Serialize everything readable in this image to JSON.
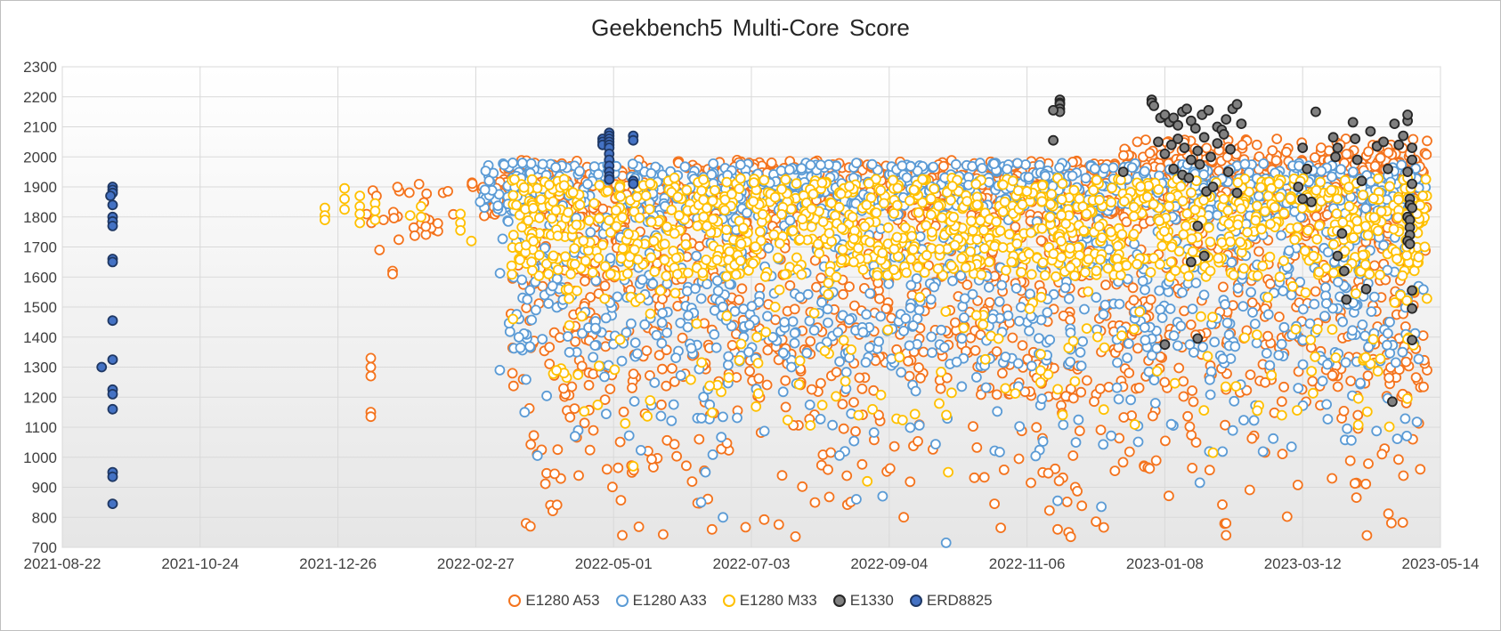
{
  "chart_data": {
    "type": "scatter",
    "title": "Geekbench5 Multi-Core Score",
    "xlabel": "",
    "ylabel": "",
    "x_ticks": [
      "2021-08-22",
      "2021-10-24",
      "2021-12-26",
      "2022-02-27",
      "2022-05-01",
      "2022-07-03",
      "2022-09-04",
      "2022-11-06",
      "2023-01-08",
      "2023-03-12",
      "2023-05-14"
    ],
    "xlim": [
      "2021-08-22",
      "2023-05-14"
    ],
    "y_ticks": [
      700,
      800,
      900,
      1000,
      1100,
      1200,
      1300,
      1400,
      1500,
      1600,
      1700,
      1800,
      1900,
      2000,
      2100,
      2200,
      2300
    ],
    "ylim": [
      700,
      2300
    ],
    "grid": true,
    "legend_position": "bottom",
    "series": [
      {
        "name": "E1280 A53",
        "fill": "#ffffff",
        "stroke": "#f4731d",
        "clusters": [
          {
            "x_range": [
              "2022-01-03",
              "2022-02-18"
            ],
            "y_range": [
              1720,
              1910
            ],
            "count": 30
          },
          {
            "x_range": [
              "2022-02-25",
              "2022-02-26"
            ],
            "y_range": [
              1900,
              1950
            ],
            "count": 4
          },
          {
            "x_range": [
              "2022-03-01",
              "2023-05-08"
            ],
            "y_range": [
              1800,
              1990
            ],
            "count": 900
          },
          {
            "x_range": [
              "2022-03-15",
              "2023-05-08"
            ],
            "y_range": [
              1200,
              1800
            ],
            "count": 900
          },
          {
            "x_range": [
              "2022-03-20",
              "2023-05-08"
            ],
            "y_range": [
              900,
              1200
            ],
            "count": 150
          },
          {
            "x_range": [
              "2022-04-01",
              "2023-05-08"
            ],
            "y_range": [
              730,
              900
            ],
            "count": 35
          },
          {
            "x_range": [
              "2022-12-20",
              "2023-05-08"
            ],
            "y_range": [
              1950,
              2060
            ],
            "count": 150
          }
        ],
        "points": [
          {
            "x": "2022-01-10",
            "y": 1330
          },
          {
            "x": "2022-01-10",
            "y": 1300
          },
          {
            "x": "2022-01-10",
            "y": 1270
          },
          {
            "x": "2022-01-10",
            "y": 1150
          },
          {
            "x": "2022-01-10",
            "y": 1135
          },
          {
            "x": "2022-01-14",
            "y": 1690
          },
          {
            "x": "2022-01-20",
            "y": 1620
          },
          {
            "x": "2022-01-20",
            "y": 1610
          },
          {
            "x": "2022-03-22",
            "y": 780
          },
          {
            "x": "2022-03-24",
            "y": 770
          },
          {
            "x": "2022-04-28",
            "y": 960
          },
          {
            "x": "2022-05-05",
            "y": 740
          },
          {
            "x": "2022-06-15",
            "y": 760
          },
          {
            "x": "2022-10-25",
            "y": 765
          },
          {
            "x": "2022-11-20",
            "y": 760
          },
          {
            "x": "2022-11-25",
            "y": 750
          },
          {
            "x": "2022-11-26",
            "y": 735
          },
          {
            "x": "2023-02-05",
            "y": 740
          },
          {
            "x": "2023-02-05",
            "y": 780
          },
          {
            "x": "2023-04-20",
            "y": 1450
          }
        ]
      },
      {
        "name": "E1280 A33",
        "fill": "#ffffff",
        "stroke": "#5b9bd5",
        "clusters": [
          {
            "x_range": [
              "2022-03-01",
              "2023-05-08"
            ],
            "y_range": [
              1820,
              1980
            ],
            "count": 700
          },
          {
            "x_range": [
              "2022-03-10",
              "2023-05-08"
            ],
            "y_range": [
              1300,
              1820
            ],
            "count": 700
          },
          {
            "x_range": [
              "2022-03-20",
              "2023-05-08"
            ],
            "y_range": [
              1000,
              1300
            ],
            "count": 110
          }
        ],
        "points": [
          {
            "x": "2022-03-01",
            "y": 1850
          },
          {
            "x": "2022-03-10",
            "y": 1290
          },
          {
            "x": "2022-06-10",
            "y": 850
          },
          {
            "x": "2022-06-12",
            "y": 950
          },
          {
            "x": "2022-06-20",
            "y": 800
          },
          {
            "x": "2022-08-20",
            "y": 860
          },
          {
            "x": "2022-09-01",
            "y": 870
          },
          {
            "x": "2022-09-30",
            "y": 715
          },
          {
            "x": "2022-11-20",
            "y": 855
          },
          {
            "x": "2022-12-10",
            "y": 835
          },
          {
            "x": "2023-01-24",
            "y": 915
          },
          {
            "x": "2023-03-10",
            "y": 1230
          }
        ]
      },
      {
        "name": "E1280 M33",
        "fill": "#ffffff",
        "stroke": "#ffc000",
        "clusters": [
          {
            "x_range": [
              "2022-03-15",
              "2023-05-08"
            ],
            "y_range": [
              1600,
              1930
            ],
            "count": 1000
          },
          {
            "x_range": [
              "2022-04-01",
              "2023-05-08"
            ],
            "y_range": [
              1100,
              1600
            ],
            "count": 150
          }
        ],
        "points": [
          {
            "x": "2021-12-20",
            "y": 1830
          },
          {
            "x": "2021-12-20",
            "y": 1805
          },
          {
            "x": "2021-12-20",
            "y": 1790
          },
          {
            "x": "2021-12-29",
            "y": 1895
          },
          {
            "x": "2021-12-29",
            "y": 1860
          },
          {
            "x": "2021-12-29",
            "y": 1825
          },
          {
            "x": "2022-01-05",
            "y": 1870
          },
          {
            "x": "2022-01-05",
            "y": 1835
          },
          {
            "x": "2022-01-05",
            "y": 1810
          },
          {
            "x": "2022-01-05",
            "y": 1780
          },
          {
            "x": "2022-01-12",
            "y": 1845
          },
          {
            "x": "2022-01-12",
            "y": 1820
          },
          {
            "x": "2022-01-12",
            "y": 1790
          },
          {
            "x": "2022-01-28",
            "y": 1805
          },
          {
            "x": "2022-02-02",
            "y": 1835
          },
          {
            "x": "2022-02-02",
            "y": 1800
          },
          {
            "x": "2022-02-20",
            "y": 1810
          },
          {
            "x": "2022-02-20",
            "y": 1780
          },
          {
            "x": "2022-02-20",
            "y": 1755
          },
          {
            "x": "2022-02-25",
            "y": 1720
          },
          {
            "x": "2022-03-16",
            "y": 1460
          },
          {
            "x": "2022-05-10",
            "y": 970
          },
          {
            "x": "2022-08-25",
            "y": 920
          },
          {
            "x": "2022-10-01",
            "y": 950
          },
          {
            "x": "2023-01-30",
            "y": 1015
          }
        ]
      },
      {
        "name": "E1330",
        "fill": "#808080",
        "stroke": "#262626",
        "points": [
          {
            "x": "2022-11-21",
            "y": 2190
          },
          {
            "x": "2022-11-21",
            "y": 2180
          },
          {
            "x": "2022-11-21",
            "y": 2175
          },
          {
            "x": "2022-11-21",
            "y": 2160
          },
          {
            "x": "2022-11-21",
            "y": 2150
          },
          {
            "x": "2022-11-18",
            "y": 2155
          },
          {
            "x": "2022-11-18",
            "y": 2055
          },
          {
            "x": "2022-12-20",
            "y": 1950
          },
          {
            "x": "2023-01-02",
            "y": 2190
          },
          {
            "x": "2023-01-02",
            "y": 2180
          },
          {
            "x": "2023-01-03",
            "y": 2170
          },
          {
            "x": "2023-01-06",
            "y": 2130
          },
          {
            "x": "2023-01-08",
            "y": 2140
          },
          {
            "x": "2023-01-10",
            "y": 2115
          },
          {
            "x": "2023-01-12",
            "y": 2130
          },
          {
            "x": "2023-01-14",
            "y": 2105
          },
          {
            "x": "2023-01-16",
            "y": 2150
          },
          {
            "x": "2023-01-18",
            "y": 2160
          },
          {
            "x": "2023-01-20",
            "y": 2120
          },
          {
            "x": "2023-01-22",
            "y": 2095
          },
          {
            "x": "2023-01-25",
            "y": 2140
          },
          {
            "x": "2023-01-28",
            "y": 2155
          },
          {
            "x": "2023-02-01",
            "y": 2100
          },
          {
            "x": "2023-02-03",
            "y": 2090
          },
          {
            "x": "2023-02-05",
            "y": 2125
          },
          {
            "x": "2023-02-08",
            "y": 2160
          },
          {
            "x": "2023-02-10",
            "y": 2175
          },
          {
            "x": "2023-02-12",
            "y": 2110
          },
          {
            "x": "2023-01-05",
            "y": 2050
          },
          {
            "x": "2023-01-08",
            "y": 2010
          },
          {
            "x": "2023-01-11",
            "y": 2040
          },
          {
            "x": "2023-01-14",
            "y": 2060
          },
          {
            "x": "2023-01-17",
            "y": 2030
          },
          {
            "x": "2023-01-20",
            "y": 1990
          },
          {
            "x": "2023-01-23",
            "y": 2020
          },
          {
            "x": "2023-01-26",
            "y": 2065
          },
          {
            "x": "2023-01-29",
            "y": 2000
          },
          {
            "x": "2023-02-01",
            "y": 2045
          },
          {
            "x": "2023-02-04",
            "y": 2075
          },
          {
            "x": "2023-02-07",
            "y": 2025
          },
          {
            "x": "2023-01-12",
            "y": 1960
          },
          {
            "x": "2023-01-16",
            "y": 1940
          },
          {
            "x": "2023-01-19",
            "y": 1930
          },
          {
            "x": "2023-01-24",
            "y": 1975
          },
          {
            "x": "2023-01-27",
            "y": 1885
          },
          {
            "x": "2023-01-30",
            "y": 1900
          },
          {
            "x": "2023-02-06",
            "y": 1950
          },
          {
            "x": "2023-02-10",
            "y": 1880
          },
          {
            "x": "2023-01-23",
            "y": 1770
          },
          {
            "x": "2023-01-20",
            "y": 1650
          },
          {
            "x": "2023-01-26",
            "y": 1670
          },
          {
            "x": "2023-01-08",
            "y": 1375
          },
          {
            "x": "2023-01-23",
            "y": 1395
          },
          {
            "x": "2023-03-12",
            "y": 2030
          },
          {
            "x": "2023-03-10",
            "y": 1900
          },
          {
            "x": "2023-03-12",
            "y": 1860
          },
          {
            "x": "2023-03-14",
            "y": 1960
          },
          {
            "x": "2023-03-16",
            "y": 1850
          },
          {
            "x": "2023-03-18",
            "y": 2150
          },
          {
            "x": "2023-03-26",
            "y": 2065
          },
          {
            "x": "2023-03-28",
            "y": 2030
          },
          {
            "x": "2023-03-27",
            "y": 2000
          },
          {
            "x": "2023-03-30",
            "y": 1745
          },
          {
            "x": "2023-03-28",
            "y": 1670
          },
          {
            "x": "2023-03-31",
            "y": 1620
          },
          {
            "x": "2023-04-01",
            "y": 1525
          },
          {
            "x": "2023-04-04",
            "y": 2115
          },
          {
            "x": "2023-04-05",
            "y": 2060
          },
          {
            "x": "2023-04-06",
            "y": 1990
          },
          {
            "x": "2023-04-08",
            "y": 1920
          },
          {
            "x": "2023-04-10",
            "y": 1560
          },
          {
            "x": "2023-04-12",
            "y": 2085
          },
          {
            "x": "2023-04-15",
            "y": 2035
          },
          {
            "x": "2023-04-18",
            "y": 2050
          },
          {
            "x": "2023-04-20",
            "y": 1960
          },
          {
            "x": "2023-04-23",
            "y": 2110
          },
          {
            "x": "2023-04-22",
            "y": 1185
          },
          {
            "x": "2023-04-25",
            "y": 2040
          },
          {
            "x": "2023-04-27",
            "y": 2070
          },
          {
            "x": "2023-04-29",
            "y": 2120
          },
          {
            "x": "2023-04-29",
            "y": 2140
          },
          {
            "x": "2023-05-01",
            "y": 2030
          },
          {
            "x": "2023-05-01",
            "y": 1990
          },
          {
            "x": "2023-04-29",
            "y": 1950
          },
          {
            "x": "2023-05-01",
            "y": 1910
          },
          {
            "x": "2023-04-30",
            "y": 1860
          },
          {
            "x": "2023-04-30",
            "y": 1840
          },
          {
            "x": "2023-05-01",
            "y": 1830
          },
          {
            "x": "2023-04-29",
            "y": 1800
          },
          {
            "x": "2023-04-30",
            "y": 1790
          },
          {
            "x": "2023-04-30",
            "y": 1765
          },
          {
            "x": "2023-04-30",
            "y": 1740
          },
          {
            "x": "2023-04-29",
            "y": 1720
          },
          {
            "x": "2023-04-30",
            "y": 1710
          },
          {
            "x": "2023-05-01",
            "y": 1555
          },
          {
            "x": "2023-05-01",
            "y": 1495
          },
          {
            "x": "2023-05-01",
            "y": 1390
          }
        ]
      },
      {
        "name": "ERD8825",
        "fill": "#4472c4",
        "stroke": "#1f3864",
        "points": [
          {
            "x": "2021-09-09",
            "y": 1300
          },
          {
            "x": "2021-09-14",
            "y": 1900
          },
          {
            "x": "2021-09-14",
            "y": 1890
          },
          {
            "x": "2021-09-14",
            "y": 1880
          },
          {
            "x": "2021-09-13",
            "y": 1870
          },
          {
            "x": "2021-09-14",
            "y": 1840
          },
          {
            "x": "2021-09-14",
            "y": 1800
          },
          {
            "x": "2021-09-14",
            "y": 1785
          },
          {
            "x": "2021-09-14",
            "y": 1770
          },
          {
            "x": "2021-09-14",
            "y": 1660
          },
          {
            "x": "2021-09-14",
            "y": 1650
          },
          {
            "x": "2021-09-14",
            "y": 1455
          },
          {
            "x": "2021-09-14",
            "y": 1325
          },
          {
            "x": "2021-09-14",
            "y": 1225
          },
          {
            "x": "2021-09-14",
            "y": 1210
          },
          {
            "x": "2021-09-14",
            "y": 1160
          },
          {
            "x": "2021-09-14",
            "y": 950
          },
          {
            "x": "2021-09-14",
            "y": 935
          },
          {
            "x": "2021-09-14",
            "y": 845
          },
          {
            "x": "2022-04-26",
            "y": 2060
          },
          {
            "x": "2022-04-26",
            "y": 2050
          },
          {
            "x": "2022-04-26",
            "y": 2040
          },
          {
            "x": "2022-04-29",
            "y": 2080
          },
          {
            "x": "2022-04-29",
            "y": 2070
          },
          {
            "x": "2022-04-29",
            "y": 2060
          },
          {
            "x": "2022-04-29",
            "y": 2050
          },
          {
            "x": "2022-04-29",
            "y": 2040
          },
          {
            "x": "2022-04-29",
            "y": 2030
          },
          {
            "x": "2022-04-29",
            "y": 2010
          },
          {
            "x": "2022-04-29",
            "y": 1990
          },
          {
            "x": "2022-04-29",
            "y": 1970
          },
          {
            "x": "2022-04-29",
            "y": 1950
          },
          {
            "x": "2022-04-29",
            "y": 1935
          },
          {
            "x": "2022-04-29",
            "y": 1925
          },
          {
            "x": "2022-05-10",
            "y": 2070
          },
          {
            "x": "2022-05-10",
            "y": 2055
          },
          {
            "x": "2022-05-10",
            "y": 1920
          },
          {
            "x": "2022-05-10",
            "y": 1910
          }
        ]
      }
    ]
  }
}
